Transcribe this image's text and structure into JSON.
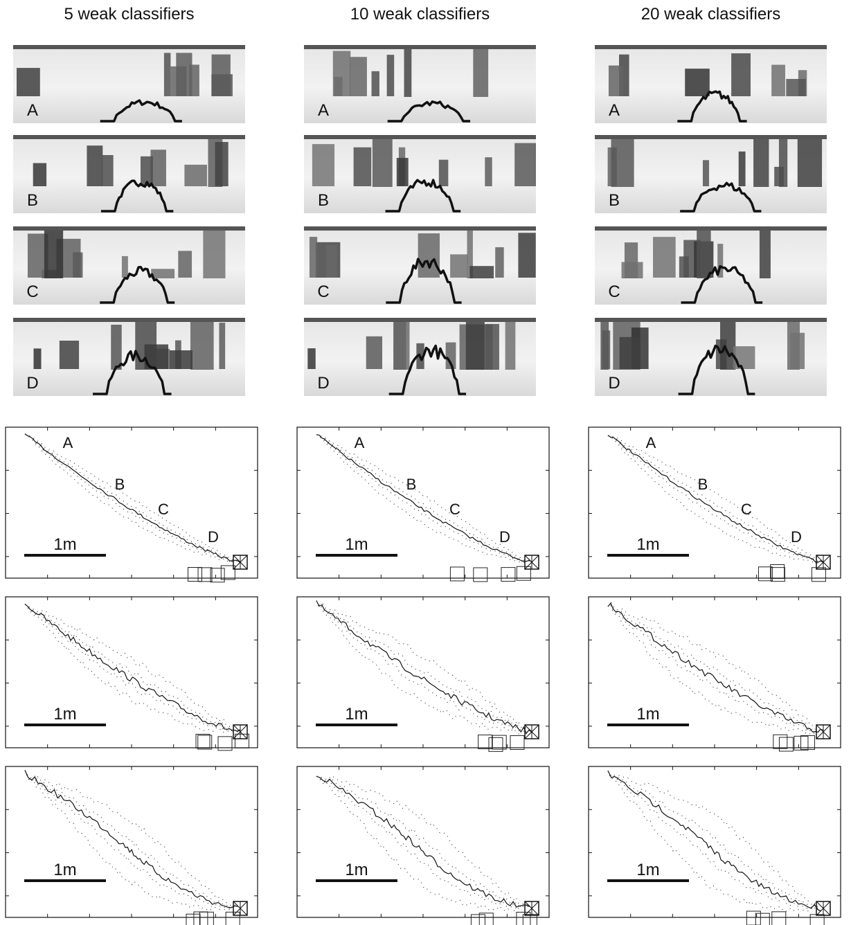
{
  "columns": [
    {
      "title": "5 weak classifiers",
      "images": [
        {
          "label": "A"
        },
        {
          "label": "B"
        },
        {
          "label": "C"
        },
        {
          "label": "D"
        }
      ],
      "plots": [
        {
          "labels": [
            "A",
            "B",
            "C",
            "D"
          ],
          "scale": "1m"
        },
        {
          "scale": "1m"
        },
        {
          "scale": "1m"
        }
      ]
    },
    {
      "title": "10 weak classifiers",
      "images": [
        {
          "label": "A"
        },
        {
          "label": "B"
        },
        {
          "label": "C"
        },
        {
          "label": "D"
        }
      ],
      "plots": [
        {
          "labels": [
            "A",
            "B",
            "C",
            "D"
          ],
          "scale": "1m"
        },
        {
          "scale": "1m"
        },
        {
          "scale": "1m"
        }
      ]
    },
    {
      "title": "20 weak classifiers",
      "images": [
        {
          "label": "A"
        },
        {
          "label": "B"
        },
        {
          "label": "C"
        },
        {
          "label": "D"
        }
      ],
      "plots": [
        {
          "labels": [
            "A",
            "B",
            "C",
            "D"
          ],
          "scale": "1m"
        },
        {
          "scale": "1m"
        },
        {
          "scale": "1m"
        }
      ]
    }
  ]
}
